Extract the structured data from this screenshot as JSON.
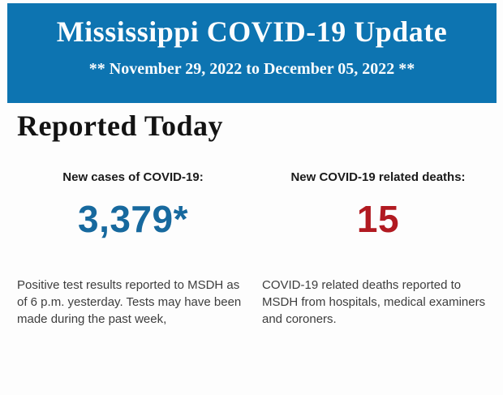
{
  "header": {
    "title": "Mississippi COVID-19 Update",
    "date_range": "** November 29, 2022 to December 05, 2022 **",
    "background_color": "#0d74b1",
    "text_color": "#fbfdfe"
  },
  "report": {
    "heading": "Reported Today",
    "cases": {
      "label": "New cases of COVID-19:",
      "value": "3,379*",
      "value_color": "#17699e",
      "description": "Positive test results reported to MSDH as of 6 p.m. yesterday. Tests may have been made during the past week,"
    },
    "deaths": {
      "label": "New COVID-19 related deaths:",
      "value": "15",
      "value_color": "#b11a21",
      "description": "COVID-19 related deaths reported to MSDH from hospitals, medical examiners and coroners."
    }
  }
}
